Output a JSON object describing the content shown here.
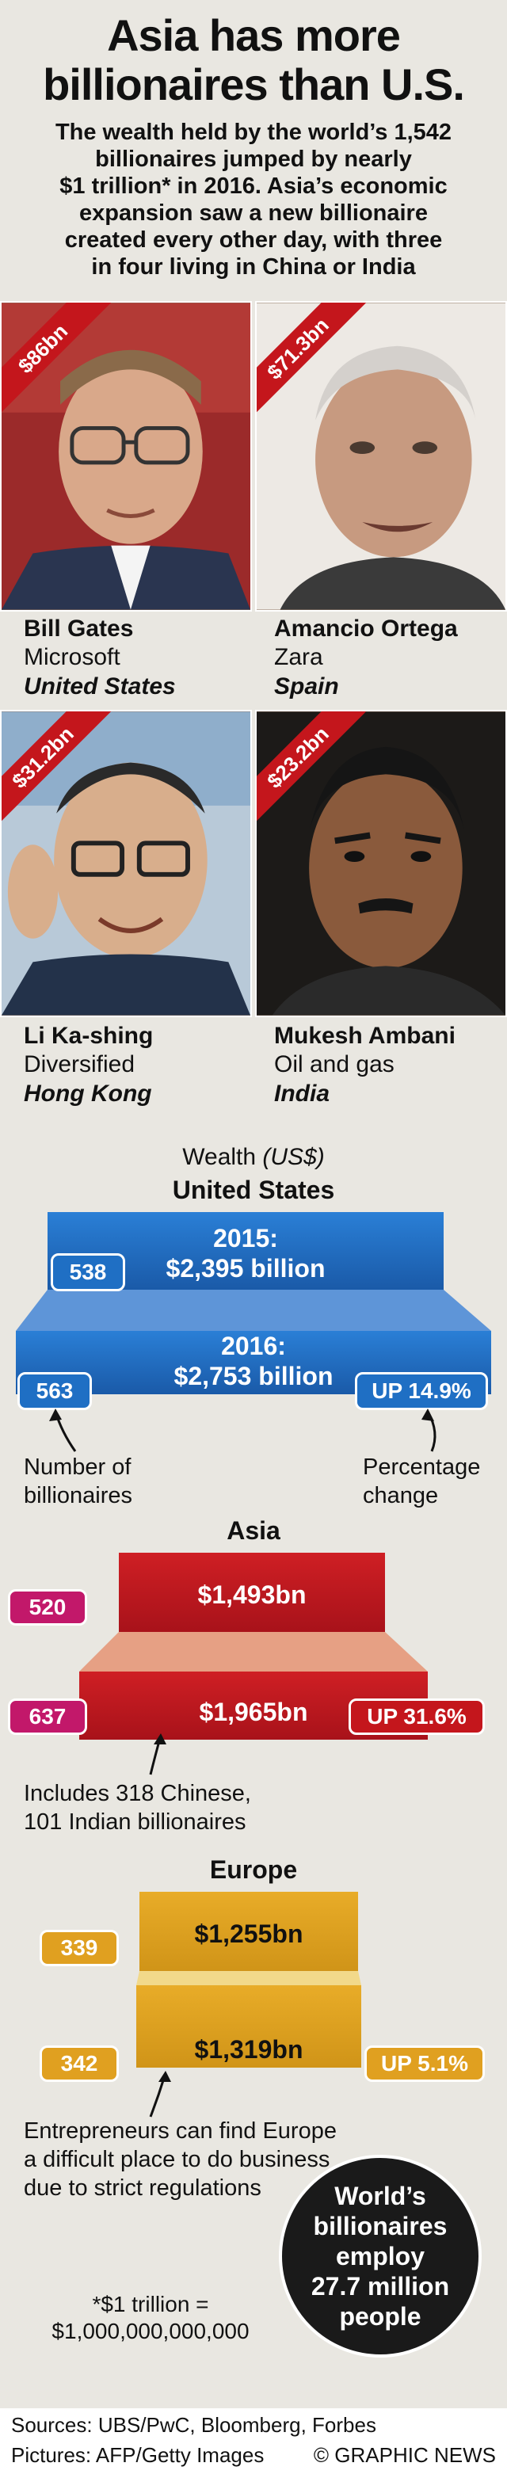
{
  "header": {
    "title_line1": "Asia has more",
    "title_line2": "billionaires than U.S.",
    "intro_lines": [
      "The wealth held by the world’s 1,542",
      "billionaires jumped by nearly",
      "$1 trillion* in 2016. Asia’s economic",
      "expansion saw a new billionaire",
      "created every other day, with three",
      "in four living in China or India"
    ]
  },
  "people": [
    {
      "wealth": "$86bn",
      "name": "Bill Gates",
      "company": "Microsoft",
      "country": "United States"
    },
    {
      "wealth": "$71.3bn",
      "name": "Amancio Ortega",
      "company": "Zara",
      "country": "Spain"
    },
    {
      "wealth": "$31.2bn",
      "name": "Li Ka-shing",
      "company": "Diversified",
      "country": "Hong Kong"
    },
    {
      "wealth": "$23.2bn",
      "name": "Mukesh Ambani",
      "company": "Oil and gas",
      "country": "India"
    }
  ],
  "wealth": {
    "label": "Wealth",
    "unit": "(US$)"
  },
  "us": {
    "heading": "United States",
    "y2015_line1": "2015:",
    "y2015_line2": "$2,395 billion",
    "y2015_count": "538",
    "y2016_line1": "2016:",
    "y2016_line2": "$2,753 billion",
    "y2016_count": "563",
    "change": "UP 14.9%",
    "note_count_line1": "Number of",
    "note_count_line2": "billionaires",
    "note_pct_line1": "Percentage",
    "note_pct_line2": "change"
  },
  "asia": {
    "heading": "Asia",
    "y2015_value": "$1,493bn",
    "y2015_count": "520",
    "y2016_value": "$1,965bn",
    "y2016_count": "637",
    "change": "UP 31.6%",
    "note_line1": "Includes 318 Chinese,",
    "note_line2": "101 Indian billionaires"
  },
  "europe": {
    "heading": "Europe",
    "y2015_value": "$1,255bn",
    "y2015_count": "339",
    "y2016_value": "$1,319bn",
    "y2016_count": "342",
    "change": "UP 5.1%",
    "note_line1": "Entrepreneurs can find Europe",
    "note_line2": "a difficult place to do business",
    "note_line3": "due to strict regulations"
  },
  "circle": {
    "line1": "World’s",
    "line2": "billionaires",
    "line3": "employ",
    "line4": "27.7 million",
    "line5": "people"
  },
  "footnote": {
    "line1": "*$1 trillion =",
    "line2": "$1,000,000,000,000"
  },
  "footer": {
    "sources": "Sources: UBS/PwC, Bloomberg, Forbes",
    "pictures": "Pictures: AFP/Getty Images",
    "credit": "© GRAPHIC NEWS"
  },
  "colors": {
    "us_blue": "#1f6fc4",
    "asia_red": "#c4161c",
    "asia_badge": "#c2186a",
    "europe_gold": "#e0a020",
    "ribbon_red": "#c4161c"
  }
}
